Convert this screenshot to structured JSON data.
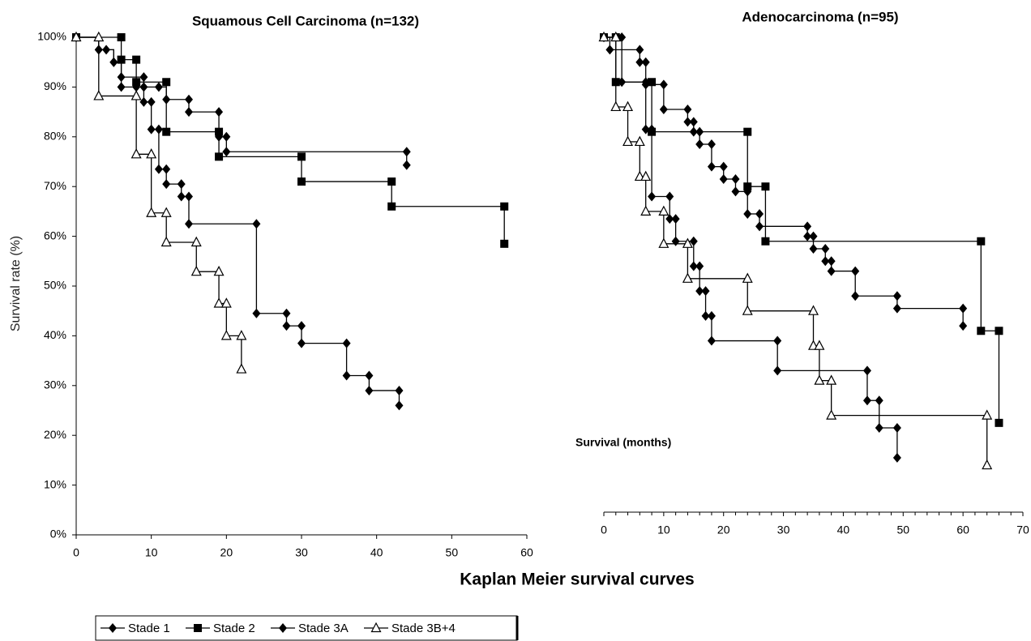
{
  "title": "Kaplan Meier survival curves",
  "chart_data": [
    {
      "type": "step",
      "title": "Squamous Cell Carcinoma (n=132)",
      "ylabel": "Survival rate (%)",
      "xlim": [
        0,
        60
      ],
      "xticks": [
        0,
        10,
        20,
        30,
        40,
        50,
        60
      ],
      "ylim": [
        0,
        100
      ],
      "yticks": [
        {
          "value": 0,
          "label": "0%"
        },
        {
          "value": 10,
          "label": "10%"
        },
        {
          "value": 20,
          "label": "20%"
        },
        {
          "value": 30,
          "label": "30%"
        },
        {
          "value": 40,
          "label": "40%"
        },
        {
          "value": 50,
          "label": "50%"
        },
        {
          "value": 60,
          "label": "60%"
        },
        {
          "value": 70,
          "label": "70%"
        },
        {
          "value": 80,
          "label": "80%"
        },
        {
          "value": 90,
          "label": "90%"
        },
        {
          "value": 100,
          "label": "100%"
        }
      ],
      "series": [
        {
          "name": "Stade 1",
          "marker": "diamond",
          "color": "#000000",
          "x": [
            0,
            3,
            5,
            6,
            9,
            9,
            11,
            12,
            15,
            15,
            19,
            19,
            20,
            20,
            44,
            44
          ],
          "values": [
            100,
            97.5,
            95,
            92,
            92,
            90,
            90,
            87.5,
            87.5,
            85,
            85,
            80,
            80,
            77,
            77,
            74.3
          ]
        },
        {
          "name": "Stade 2",
          "marker": "square",
          "color": "#000000",
          "x": [
            0,
            6,
            6,
            8,
            8,
            12,
            12,
            19,
            19,
            30,
            30,
            42,
            42,
            57,
            57
          ],
          "values": [
            100,
            100,
            95.5,
            95.5,
            91,
            91,
            81,
            81,
            76,
            76,
            71,
            71,
            66,
            66,
            58.5
          ]
        },
        {
          "name": "Stade 3A",
          "marker": "diamond",
          "color": "#000000",
          "x": [
            0,
            3,
            4,
            5,
            6,
            8,
            9,
            10,
            10,
            11,
            11,
            12,
            12,
            14,
            14,
            15,
            15,
            24,
            24,
            28,
            28,
            30,
            30,
            36,
            36,
            39,
            39,
            43,
            43
          ],
          "values": [
            100,
            97.5,
            97.5,
            95,
            90,
            90,
            87,
            87,
            81.5,
            81.5,
            73.5,
            73.5,
            70.5,
            70.5,
            68,
            68,
            62.5,
            62.5,
            44.5,
            44.5,
            42,
            42,
            38.5,
            38.5,
            32,
            32,
            29,
            29,
            26
          ]
        },
        {
          "name": "Stade 3B+4",
          "marker": "triangle",
          "color": "#000000",
          "x": [
            0,
            3,
            3,
            8,
            8,
            10,
            10,
            12,
            12,
            16,
            16,
            19,
            19,
            20,
            20,
            22,
            22
          ],
          "values": [
            100,
            100,
            88.2,
            88.2,
            76.5,
            76.5,
            64.7,
            64.7,
            58.8,
            58.8,
            52.9,
            52.9,
            46.5,
            46.5,
            40,
            40,
            33.3
          ]
        }
      ]
    },
    {
      "type": "step",
      "title": "Adenocarcinoma (n=95)",
      "xlabel": "Survival (months)",
      "xlim": [
        0,
        70
      ],
      "xticks": [
        0,
        10,
        20,
        30,
        40,
        50,
        60,
        70
      ],
      "ylim": [
        0,
        100
      ],
      "series": [
        {
          "name": "Stade 1",
          "marker": "diamond",
          "color": "#000000",
          "x": [
            0,
            1,
            6,
            6,
            7,
            7,
            10,
            10,
            14,
            14,
            15,
            15,
            16,
            16,
            18,
            18,
            20,
            20,
            22,
            22,
            24,
            24,
            26,
            26,
            34,
            34,
            35,
            35,
            37,
            37,
            38,
            38,
            42,
            42,
            49,
            49,
            60,
            60
          ],
          "values": [
            100,
            97.5,
            97.5,
            95,
            95,
            90.5,
            90.5,
            85.5,
            85.5,
            83,
            83,
            81,
            81,
            78.5,
            78.5,
            74,
            74,
            71.5,
            71.5,
            69,
            69,
            64.5,
            64.5,
            62,
            62,
            60,
            60,
            57.5,
            57.5,
            55,
            55,
            53,
            53,
            48,
            48,
            45.5,
            45.5,
            42
          ]
        },
        {
          "name": "Stade 2",
          "marker": "square",
          "color": "#000000",
          "x": [
            0,
            2,
            2,
            8,
            8,
            24,
            24,
            27,
            27,
            63,
            63,
            66,
            66
          ],
          "values": [
            100,
            100,
            91,
            91,
            81,
            81,
            70,
            70,
            59,
            59,
            41,
            41,
            22.5
          ]
        },
        {
          "name": "Stade 3A",
          "marker": "diamond",
          "color": "#000000",
          "x": [
            0,
            3,
            3,
            7,
            7,
            8,
            8,
            11,
            11,
            12,
            12,
            15,
            15,
            16,
            16,
            17,
            17,
            18,
            18,
            29,
            29,
            44,
            44,
            46,
            46,
            49,
            49
          ],
          "values": [
            100,
            100,
            91,
            91,
            81.5,
            81.5,
            68,
            68,
            63.5,
            63.5,
            59,
            59,
            54,
            54,
            49,
            49,
            44,
            44,
            39,
            39,
            33,
            33,
            27,
            27,
            21.5,
            21.5,
            15.5
          ]
        },
        {
          "name": "Stade 3B+4",
          "marker": "triangle",
          "color": "#000000",
          "x": [
            0,
            2,
            2,
            4,
            4,
            6,
            6,
            7,
            7,
            10,
            10,
            14,
            14,
            24,
            24,
            35,
            35,
            36,
            36,
            38,
            38,
            64,
            64
          ],
          "values": [
            100,
            100,
            86,
            86,
            79,
            79,
            72,
            72,
            65,
            65,
            58.5,
            58.5,
            51.5,
            51.5,
            45,
            45,
            38,
            38,
            31,
            31,
            24,
            24,
            14
          ]
        }
      ]
    }
  ]
}
